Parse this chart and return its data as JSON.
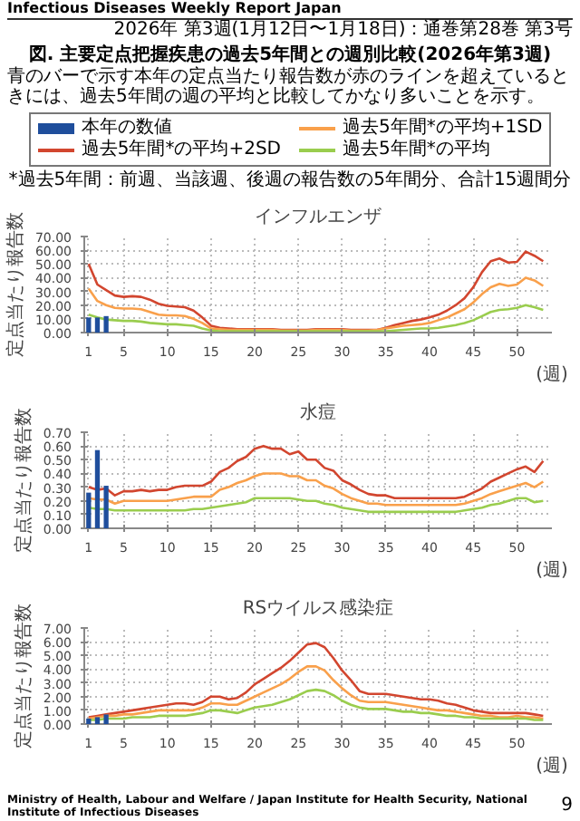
{
  "chart_data": [
    {
      "type": "line",
      "title": "インフルエンザ",
      "ylabel": "定点当たり報告数",
      "xlabel": "(週)",
      "annotations": [
        "Infectious Diseases Weekly Report Japan",
        "2026年 第3週(1月12日〜1月18日)：通巻第28巻 第3号",
        "図. 主要定点把握疾患の過去5年間との週別比較(2026年第3週)",
        "青のバーで示す本年の定点当たり報告数が赤のラインを超えているときには、過去5年間の週の平均と比較してかなり多いことを示す。",
        "*過去5年間：前週、当該週、後週の報告数の5年間分、合計15週間分"
      ],
      "x": [
        1,
        2,
        3,
        4,
        5,
        6,
        7,
        8,
        9,
        10,
        11,
        12,
        13,
        14,
        15,
        16,
        17,
        18,
        19,
        20,
        21,
        22,
        23,
        24,
        25,
        26,
        27,
        28,
        29,
        30,
        31,
        32,
        33,
        34,
        35,
        36,
        37,
        38,
        39,
        40,
        41,
        42,
        43,
        44,
        45,
        46,
        47,
        48,
        49,
        50,
        51,
        52,
        53
      ],
      "xlim": [
        0.5,
        54
      ],
      "xticks": [
        1,
        5,
        10,
        15,
        20,
        25,
        30,
        35,
        40,
        45,
        50
      ],
      "ylim": [
        0,
        70
      ],
      "yticks": [
        {
          "value": 0,
          "label": "0.00"
        },
        {
          "value": 10,
          "label": "10.00"
        },
        {
          "value": 20,
          "label": "20.00"
        },
        {
          "value": 30,
          "label": "30.00"
        },
        {
          "value": 40,
          "label": "40.00"
        },
        {
          "value": 50,
          "label": "50.00"
        },
        {
          "value": 60,
          "label": "60.00"
        },
        {
          "value": 70,
          "label": "70.00"
        }
      ],
      "grid": true,
      "legend": "top",
      "series": [
        {
          "name": "本年の数値",
          "type": "bar",
          "color": "#1f4e9c",
          "x": [
            1,
            2,
            3
          ],
          "values": [
            11,
            11,
            12
          ]
        },
        {
          "name": "過去5年間*の平均+2SD",
          "color": "#d2462f",
          "values": [
            50,
            35,
            31,
            27,
            26,
            26.5,
            26,
            24,
            21,
            19.5,
            19,
            18.5,
            16,
            11,
            5,
            3.5,
            3,
            2.5,
            2.5,
            2.5,
            2.5,
            2.5,
            2,
            2,
            2,
            2,
            2.5,
            2.5,
            2.5,
            2.5,
            2,
            2,
            2,
            2,
            3.5,
            5.5,
            7,
            8.5,
            9.5,
            11,
            13,
            16,
            20,
            25,
            33,
            44,
            52,
            54,
            51,
            51.5,
            59,
            56,
            52
          ]
        },
        {
          "name": "過去5年間*の平均+1SD",
          "color": "#f9a04b",
          "values": [
            32,
            23,
            20,
            18,
            17.5,
            17.5,
            17,
            15,
            13,
            12.5,
            12.5,
            12,
            10,
            7,
            3,
            2.5,
            2,
            2,
            2,
            2,
            2,
            2,
            1.5,
            1.5,
            1.5,
            1.5,
            2,
            2,
            2,
            2,
            1.5,
            1.5,
            1.5,
            2,
            3,
            4,
            5,
            5.5,
            6,
            7,
            9,
            11,
            14,
            17,
            22,
            28,
            33,
            35.5,
            34,
            35,
            40,
            38,
            34
          ]
        },
        {
          "name": "過去5年間*の平均",
          "color": "#9acd4e",
          "values": [
            13,
            11,
            9.5,
            9,
            8.5,
            8.5,
            8,
            7,
            6.5,
            6,
            6,
            5.5,
            5,
            3,
            1.5,
            1,
            1,
            1,
            1,
            1,
            1,
            1,
            1,
            1,
            1,
            1,
            1,
            1,
            1,
            1,
            1,
            1,
            1,
            1,
            1,
            1.5,
            2,
            2.5,
            3,
            3,
            3.5,
            4.5,
            5.5,
            7,
            9,
            12,
            15,
            16.5,
            17,
            18,
            20,
            18.5,
            16.5
          ]
        }
      ]
    },
    {
      "type": "line",
      "title": "水痘",
      "ylabel": "定点当たり報告数",
      "xlabel": "(週)",
      "x": [
        1,
        2,
        3,
        4,
        5,
        6,
        7,
        8,
        9,
        10,
        11,
        12,
        13,
        14,
        15,
        16,
        17,
        18,
        19,
        20,
        21,
        22,
        23,
        24,
        25,
        26,
        27,
        28,
        29,
        30,
        31,
        32,
        33,
        34,
        35,
        36,
        37,
        38,
        39,
        40,
        41,
        42,
        43,
        44,
        45,
        46,
        47,
        48,
        49,
        50,
        51,
        52,
        53
      ],
      "xlim": [
        0.5,
        54
      ],
      "xticks": [
        1,
        5,
        10,
        15,
        20,
        25,
        30,
        35,
        40,
        45,
        50
      ],
      "ylim": [
        0,
        0.7
      ],
      "yticks": [
        {
          "value": 0,
          "label": "0.00"
        },
        {
          "value": 0.1,
          "label": "0.10"
        },
        {
          "value": 0.2,
          "label": "0.20"
        },
        {
          "value": 0.3,
          "label": "0.30"
        },
        {
          "value": 0.4,
          "label": "0.40"
        },
        {
          "value": 0.5,
          "label": "0.50"
        },
        {
          "value": 0.6,
          "label": "0.60"
        },
        {
          "value": 0.7,
          "label": "0.70"
        }
      ],
      "grid": true,
      "series": [
        {
          "type": "bar",
          "color": "#1f4e9c",
          "x": [
            1,
            2,
            3
          ],
          "values": [
            0.26,
            0.57,
            0.31
          ]
        },
        {
          "color": "#d2462f",
          "values": [
            0.3,
            0.28,
            0.29,
            0.24,
            0.27,
            0.27,
            0.28,
            0.27,
            0.28,
            0.28,
            0.3,
            0.31,
            0.31,
            0.31,
            0.34,
            0.41,
            0.44,
            0.49,
            0.52,
            0.58,
            0.6,
            0.58,
            0.58,
            0.54,
            0.56,
            0.5,
            0.5,
            0.44,
            0.42,
            0.35,
            0.32,
            0.28,
            0.25,
            0.24,
            0.24,
            0.22,
            0.22,
            0.22,
            0.22,
            0.22,
            0.22,
            0.22,
            0.22,
            0.23,
            0.26,
            0.29,
            0.34,
            0.37,
            0.4,
            0.43,
            0.45,
            0.41,
            0.49
          ]
        },
        {
          "color": "#f9a04b",
          "values": [
            0.22,
            0.21,
            0.21,
            0.18,
            0.2,
            0.2,
            0.2,
            0.2,
            0.2,
            0.2,
            0.21,
            0.22,
            0.23,
            0.23,
            0.23,
            0.28,
            0.3,
            0.33,
            0.35,
            0.38,
            0.4,
            0.4,
            0.4,
            0.38,
            0.38,
            0.35,
            0.35,
            0.31,
            0.29,
            0.25,
            0.22,
            0.2,
            0.18,
            0.18,
            0.17,
            0.17,
            0.17,
            0.17,
            0.17,
            0.17,
            0.17,
            0.17,
            0.17,
            0.18,
            0.2,
            0.22,
            0.25,
            0.27,
            0.29,
            0.31,
            0.33,
            0.3,
            0.34
          ]
        },
        {
          "color": "#9acd4e",
          "values": [
            0.15,
            0.14,
            0.14,
            0.13,
            0.13,
            0.13,
            0.13,
            0.13,
            0.13,
            0.13,
            0.13,
            0.13,
            0.14,
            0.14,
            0.15,
            0.16,
            0.17,
            0.18,
            0.19,
            0.22,
            0.22,
            0.22,
            0.22,
            0.22,
            0.21,
            0.2,
            0.2,
            0.18,
            0.17,
            0.15,
            0.14,
            0.13,
            0.12,
            0.12,
            0.12,
            0.12,
            0.12,
            0.12,
            0.12,
            0.12,
            0.12,
            0.12,
            0.12,
            0.13,
            0.14,
            0.15,
            0.17,
            0.18,
            0.2,
            0.22,
            0.22,
            0.19,
            0.2
          ]
        }
      ]
    },
    {
      "type": "line",
      "title": "RSウイルス感染症",
      "ylabel": "定点当たり報告数",
      "xlabel": "(週)",
      "annotations": [
        "Ministry of Health, Labour and Welfare / Japan Institute for Health Security, National Institute of Infectious Diseases",
        "9"
      ],
      "x": [
        1,
        2,
        3,
        4,
        5,
        6,
        7,
        8,
        9,
        10,
        11,
        12,
        13,
        14,
        15,
        16,
        17,
        18,
        19,
        20,
        21,
        22,
        23,
        24,
        25,
        26,
        27,
        28,
        29,
        30,
        31,
        32,
        33,
        34,
        35,
        36,
        37,
        38,
        39,
        40,
        41,
        42,
        43,
        44,
        45,
        46,
        47,
        48,
        49,
        50,
        51,
        52,
        53
      ],
      "xlim": [
        0.5,
        54
      ],
      "xticks": [
        1,
        5,
        10,
        15,
        20,
        25,
        30,
        35,
        40,
        45,
        50
      ],
      "ylim": [
        0,
        7
      ],
      "yticks": [
        {
          "value": 0,
          "label": "0.00"
        },
        {
          "value": 1,
          "label": "1.00"
        },
        {
          "value": 2,
          "label": "2.00"
        },
        {
          "value": 3,
          "label": "3.00"
        },
        {
          "value": 4,
          "label": "4.00"
        },
        {
          "value": 5,
          "label": "5.00"
        },
        {
          "value": 6,
          "label": "6.00"
        },
        {
          "value": 7,
          "label": "7.00"
        }
      ],
      "grid": true,
      "series": [
        {
          "type": "bar",
          "color": "#1f4e9c",
          "x": [
            1,
            2,
            3
          ],
          "values": [
            0.4,
            0.5,
            0.7
          ]
        },
        {
          "color": "#d2462f",
          "values": [
            0.5,
            0.6,
            0.7,
            0.8,
            0.9,
            1.0,
            1.1,
            1.2,
            1.3,
            1.4,
            1.5,
            1.5,
            1.4,
            1.6,
            2.0,
            2.0,
            1.8,
            1.9,
            2.3,
            2.9,
            3.3,
            3.7,
            4.1,
            4.6,
            5.2,
            5.8,
            5.9,
            5.6,
            4.8,
            3.9,
            3.2,
            2.4,
            2.2,
            2.2,
            2.2,
            2.1,
            2.0,
            1.9,
            1.8,
            1.8,
            1.7,
            1.5,
            1.4,
            1.2,
            1.0,
            0.9,
            0.8,
            0.8,
            0.8,
            0.8,
            0.8,
            0.7,
            0.6
          ]
        },
        {
          "color": "#f9a04b",
          "values": [
            0.4,
            0.5,
            0.6,
            0.6,
            0.7,
            0.7,
            0.8,
            0.9,
            1.0,
            1.0,
            1.0,
            1.0,
            1.0,
            1.2,
            1.5,
            1.5,
            1.4,
            1.4,
            1.7,
            2.0,
            2.3,
            2.6,
            2.9,
            3.3,
            3.8,
            4.2,
            4.2,
            3.9,
            3.2,
            2.6,
            2.1,
            1.7,
            1.6,
            1.6,
            1.6,
            1.5,
            1.4,
            1.3,
            1.2,
            1.1,
            1.0,
            1.0,
            0.9,
            0.8,
            0.7,
            0.6,
            0.6,
            0.5,
            0.5,
            0.6,
            0.5,
            0.5,
            0.4
          ]
        },
        {
          "color": "#9acd4e",
          "values": [
            0.3,
            0.3,
            0.4,
            0.4,
            0.4,
            0.5,
            0.5,
            0.5,
            0.6,
            0.6,
            0.6,
            0.6,
            0.7,
            0.8,
            1.0,
            1.0,
            0.9,
            0.8,
            1.0,
            1.2,
            1.3,
            1.4,
            1.6,
            1.8,
            2.1,
            2.4,
            2.5,
            2.4,
            2.1,
            1.7,
            1.4,
            1.2,
            1.1,
            1.1,
            1.1,
            1.0,
            0.9,
            0.9,
            0.8,
            0.8,
            0.7,
            0.6,
            0.6,
            0.5,
            0.5,
            0.4,
            0.4,
            0.4,
            0.4,
            0.4,
            0.4,
            0.3,
            0.3
          ]
        }
      ]
    }
  ]
}
